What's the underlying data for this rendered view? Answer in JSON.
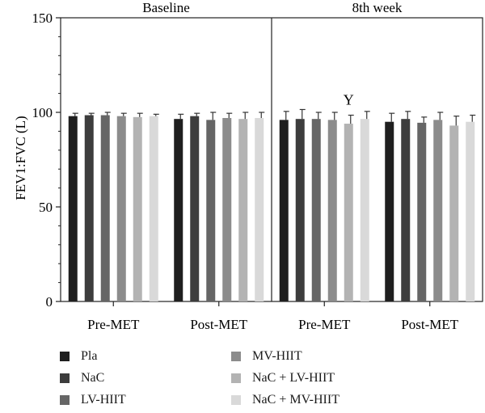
{
  "chart_data": {
    "type": "bar",
    "ylabel": "FEV1:FVC (L)",
    "ylim": [
      0,
      150
    ],
    "yticks": [
      0,
      50,
      100,
      150
    ],
    "panels": [
      {
        "title": "Baseline",
        "groups": [
          "Pre-MET",
          "Post-MET"
        ]
      },
      {
        "title": "8th week",
        "groups": [
          "Pre-MET",
          "Post-MET"
        ]
      }
    ],
    "series": [
      {
        "name": "Pla",
        "color": "#1f1f1f",
        "values": [
          98,
          96.5,
          96,
          95
        ],
        "errors": [
          1.5,
          2.5,
          4.5,
          4.5
        ]
      },
      {
        "name": "NaC",
        "color": "#3d3d3d",
        "values": [
          98.5,
          98,
          96.5,
          96.5
        ],
        "errors": [
          1,
          1.5,
          5,
          4
        ]
      },
      {
        "name": "LV-HIIT",
        "color": "#666666",
        "values": [
          98.5,
          96,
          96.5,
          94.5
        ],
        "errors": [
          1.5,
          4,
          3.5,
          3
        ]
      },
      {
        "name": "MV-HIIT",
        "color": "#8c8c8c",
        "values": [
          98,
          97,
          96,
          96
        ],
        "errors": [
          1.5,
          2.5,
          4,
          4
        ]
      },
      {
        "name": "NaC + LV-HIIT",
        "color": "#b3b3b3",
        "values": [
          97.5,
          96.5,
          94,
          93
        ],
        "errors": [
          2,
          3.5,
          4.5,
          5
        ]
      },
      {
        "name": "NaC + MV-HIIT",
        "color": "#d9d9d9",
        "values": [
          98,
          97,
          96.5,
          95
        ],
        "errors": [
          1,
          3,
          4,
          3.5
        ]
      }
    ],
    "annotations": [
      {
        "text": "Y",
        "panel": 1,
        "group": 0,
        "series": 4
      }
    ]
  }
}
